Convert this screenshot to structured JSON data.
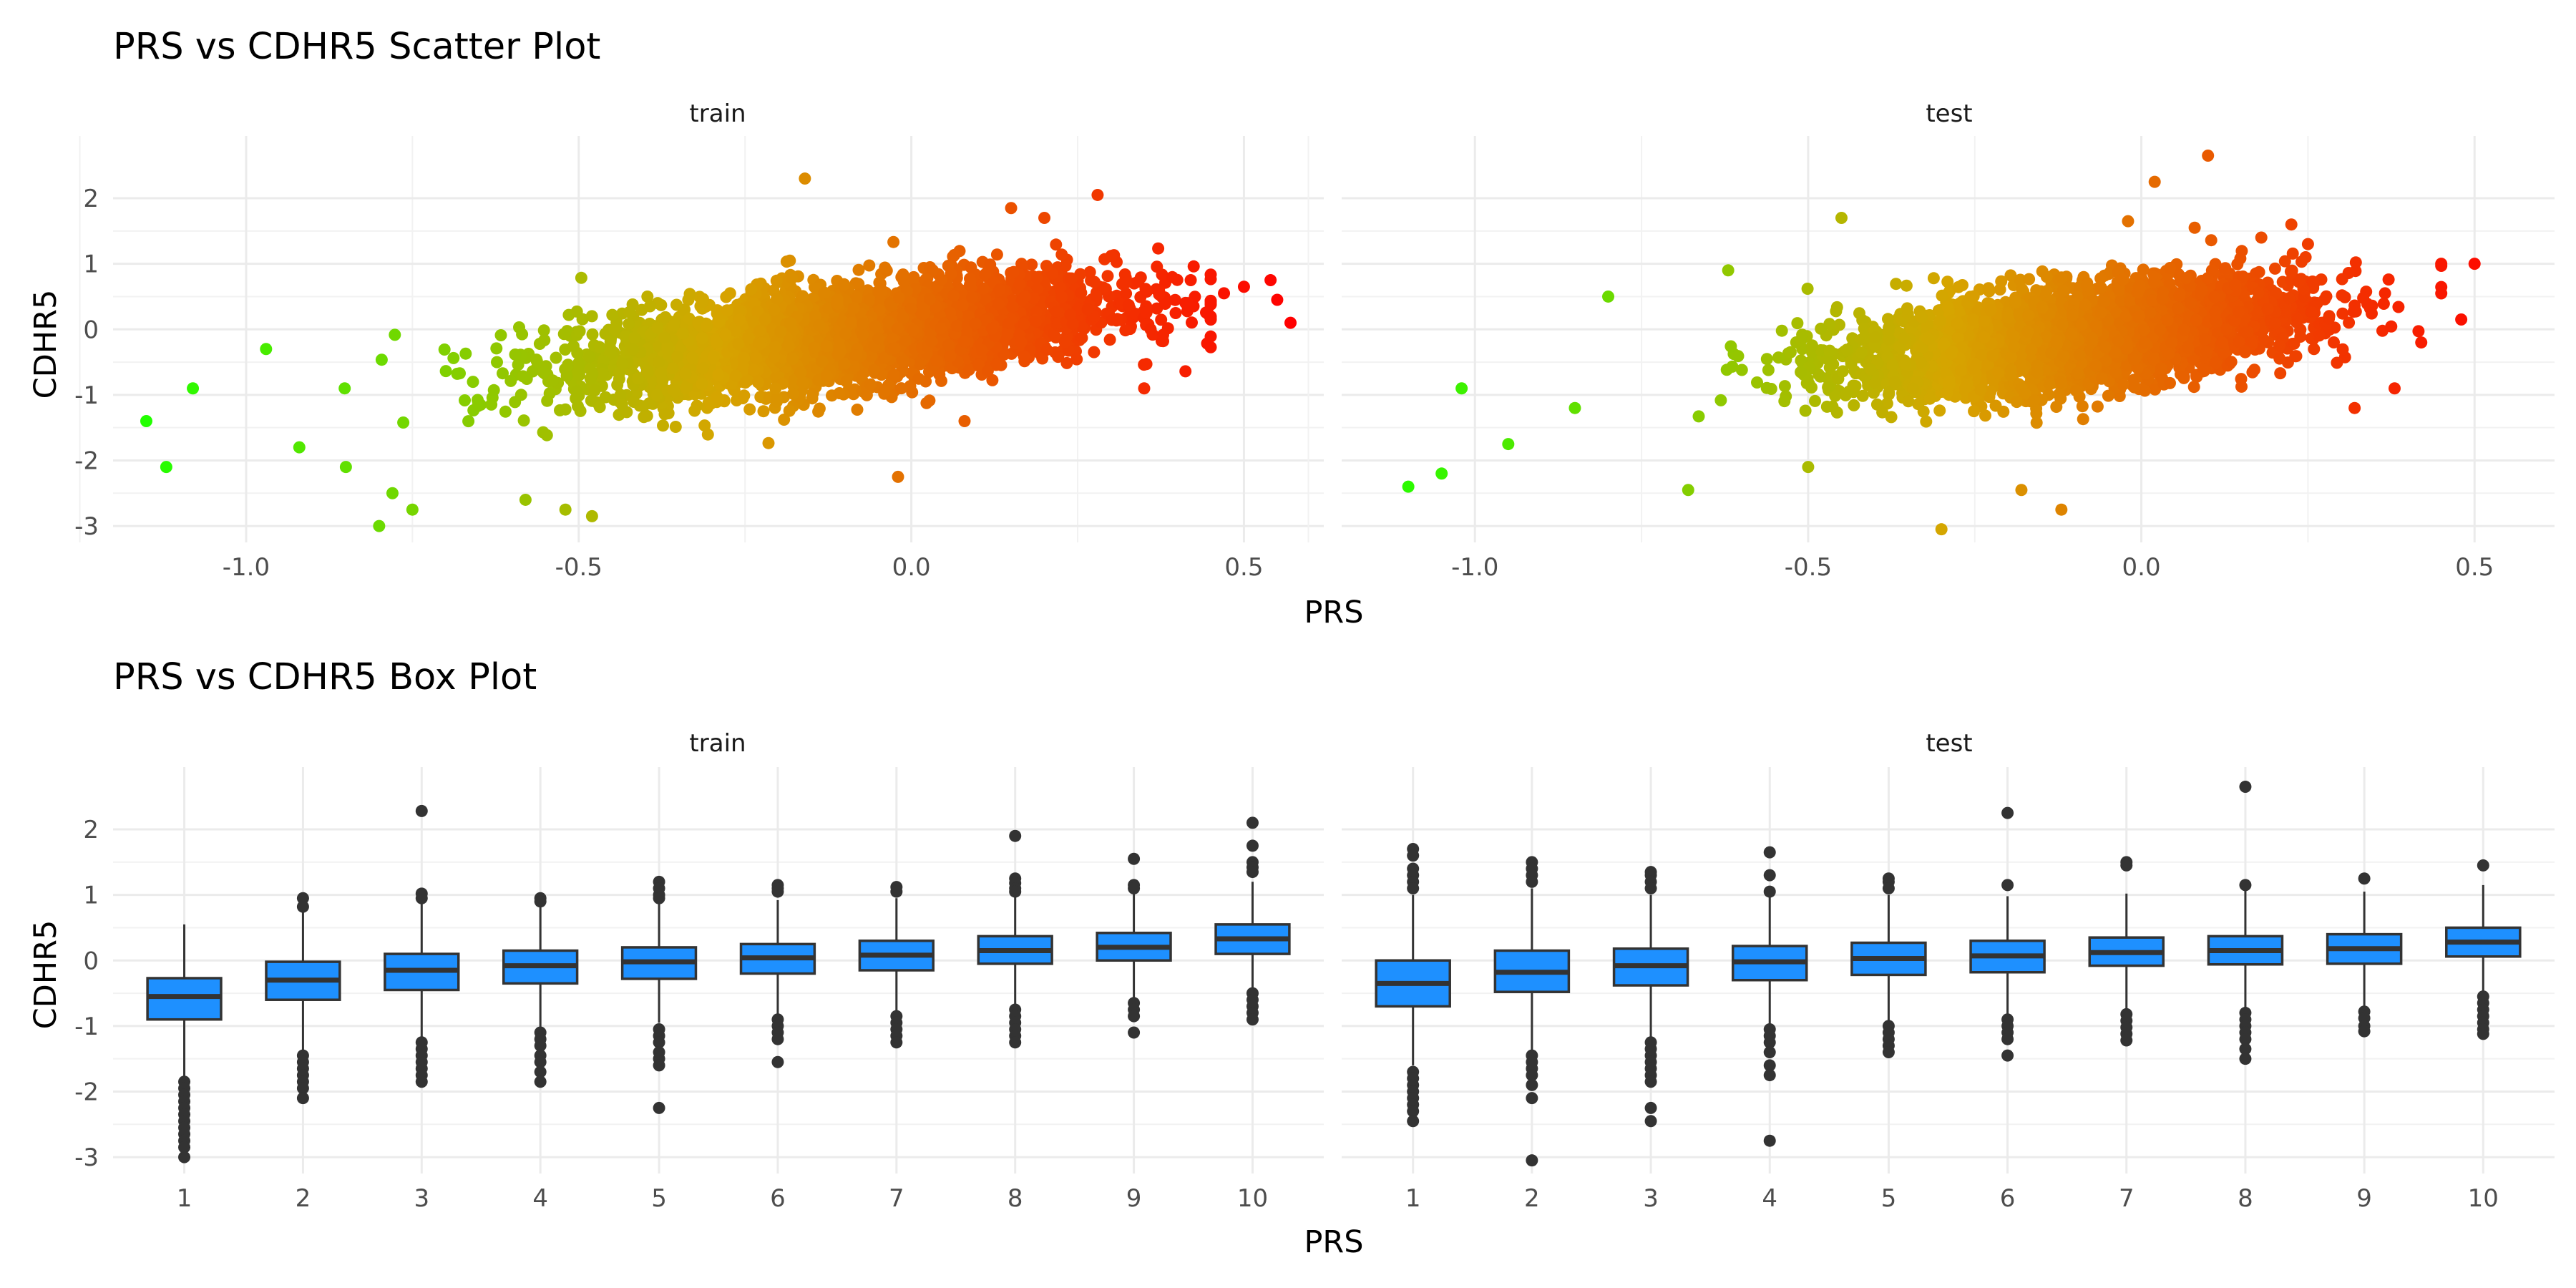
{
  "chart_data": [
    {
      "type": "scatter",
      "title": "PRS vs CDHR5 Scatter Plot",
      "xlabel": "PRS",
      "ylabel": "CDHR5",
      "facets": [
        "train",
        "test"
      ],
      "xlim": [
        -1.2,
        0.62
      ],
      "ylim": [
        -3.25,
        2.95
      ],
      "x_ticks": [
        -1.0,
        -0.5,
        0.0,
        0.5
      ],
      "x_tick_labels": [
        "-1.0",
        "-0.5",
        "0.0",
        "0.5"
      ],
      "y_ticks": [
        2,
        1,
        0,
        -1,
        -2,
        -3
      ],
      "y_tick_labels": [
        "2",
        "1",
        "0",
        "-1",
        "-2",
        "-3"
      ],
      "grid": true,
      "color_scale": {
        "low": "#22ff00",
        "mid": "#d6a500",
        "high": "#ff0000",
        "mapped_to": "PRS"
      },
      "trend": {
        "train": {
          "slope": 1.15,
          "intercept": 0.02,
          "sd": 0.5
        },
        "test": {
          "slope": 1.15,
          "intercept": 0.0,
          "sd": 0.5
        }
      },
      "panels": {
        "train": {
          "points": [
            [
              -1.15,
              -1.4
            ],
            [
              -1.12,
              -2.1
            ],
            [
              -1.08,
              -0.9
            ],
            [
              -0.97,
              -0.3
            ],
            [
              -0.92,
              -1.8
            ],
            [
              -0.85,
              -2.1
            ],
            [
              -0.8,
              -3.0
            ],
            [
              -0.78,
              -2.5
            ],
            [
              -0.75,
              -2.75
            ],
            [
              -0.58,
              -2.6
            ],
            [
              -0.52,
              -2.75
            ],
            [
              -0.48,
              -2.85
            ],
            [
              -0.16,
              2.3
            ],
            [
              -0.02,
              -2.25
            ],
            [
              0.08,
              -1.4
            ],
            [
              0.15,
              1.85
            ],
            [
              0.2,
              1.7
            ],
            [
              0.28,
              2.05
            ],
            [
              0.35,
              -0.9
            ],
            [
              0.42,
              0.75
            ],
            [
              0.47,
              0.55
            ],
            [
              0.5,
              0.65
            ],
            [
              0.54,
              0.75
            ],
            [
              0.55,
              0.45
            ],
            [
              0.57,
              0.1
            ]
          ]
        },
        "test": {
          "points": [
            [
              -1.1,
              -2.4
            ],
            [
              -1.05,
              -2.2
            ],
            [
              -1.02,
              -0.9
            ],
            [
              -0.95,
              -1.75
            ],
            [
              -0.85,
              -1.2
            ],
            [
              -0.8,
              0.5
            ],
            [
              -0.68,
              -2.45
            ],
            [
              -0.62,
              0.9
            ],
            [
              -0.5,
              -2.1
            ],
            [
              -0.45,
              1.7
            ],
            [
              -0.3,
              -3.05
            ],
            [
              -0.18,
              -2.45
            ],
            [
              -0.12,
              -2.75
            ],
            [
              -0.02,
              1.65
            ],
            [
              0.02,
              2.25
            ],
            [
              0.08,
              1.55
            ],
            [
              0.1,
              2.65
            ],
            [
              0.18,
              1.4
            ],
            [
              0.25,
              1.3
            ],
            [
              0.32,
              -1.2
            ],
            [
              0.38,
              -0.9
            ],
            [
              0.42,
              -0.2
            ],
            [
              0.45,
              1.0
            ],
            [
              0.48,
              0.15
            ],
            [
              0.5,
              1.0
            ]
          ]
        }
      }
    },
    {
      "type": "box",
      "title": "PRS vs CDHR5 Box Plot",
      "xlabel": "PRS",
      "ylabel": "CDHR5",
      "facets": [
        "train",
        "test"
      ],
      "categories": [
        "1",
        "2",
        "3",
        "4",
        "5",
        "6",
        "7",
        "8",
        "9",
        "10"
      ],
      "ylim": [
        -3.25,
        2.95
      ],
      "y_ticks": [
        2,
        1,
        0,
        -1,
        -2,
        -3
      ],
      "y_tick_labels": [
        "2",
        "1",
        "0",
        "-1",
        "-2",
        "-3"
      ],
      "grid": true,
      "box_fill": "#1e90ff",
      "panels": {
        "train": {
          "boxes": [
            {
              "lower": -1.82,
              "q1": -0.9,
              "median": -0.55,
              "q3": -0.27,
              "upper": 0.55,
              "outliers": [
                -1.85,
                -1.95,
                -2.05,
                -2.15,
                -2.25,
                -2.35,
                -2.45,
                -2.55,
                -2.65,
                -2.75,
                -2.85,
                -3.0
              ]
            },
            {
              "lower": -1.4,
              "q1": -0.6,
              "median": -0.3,
              "q3": -0.02,
              "upper": 0.78,
              "outliers": [
                0.82,
                0.95,
                -1.45,
                -1.55,
                -1.65,
                -1.75,
                -1.85,
                -1.95,
                -2.1
              ]
            },
            {
              "lower": -1.2,
              "q1": -0.45,
              "median": -0.15,
              "q3": 0.1,
              "upper": 0.9,
              "outliers": [
                2.28,
                1.02,
                0.95,
                -1.25,
                -1.35,
                -1.45,
                -1.55,
                -1.65,
                -1.75,
                -1.85
              ]
            },
            {
              "lower": -1.05,
              "q1": -0.35,
              "median": -0.08,
              "q3": 0.15,
              "upper": 0.85,
              "outliers": [
                0.95,
                0.9,
                -1.1,
                -1.2,
                -1.3,
                -1.45,
                -1.55,
                -1.7,
                -1.85
              ]
            },
            {
              "lower": -0.95,
              "q1": -0.28,
              "median": -0.02,
              "q3": 0.2,
              "upper": 0.88,
              "outliers": [
                1.2,
                1.1,
                1.0,
                0.95,
                -1.05,
                -1.15,
                -1.25,
                -1.4,
                -1.5,
                -1.6,
                -2.25
              ]
            },
            {
              "lower": -0.85,
              "q1": -0.2,
              "median": 0.04,
              "q3": 0.25,
              "upper": 0.92,
              "outliers": [
                1.15,
                1.1,
                1.05,
                -0.9,
                -1.0,
                -1.1,
                -1.2,
                -1.55
              ]
            },
            {
              "lower": -0.8,
              "q1": -0.15,
              "median": 0.08,
              "q3": 0.3,
              "upper": 0.95,
              "outliers": [
                1.12,
                1.05,
                -0.85,
                -0.95,
                -1.05,
                -1.15,
                -1.25
              ]
            },
            {
              "lower": -0.7,
              "q1": -0.05,
              "median": 0.15,
              "q3": 0.37,
              "upper": 1.0,
              "outliers": [
                1.9,
                1.25,
                1.18,
                1.1,
                1.05,
                -0.75,
                -0.85,
                -0.95,
                -1.05,
                -1.15,
                -1.25
              ]
            },
            {
              "lower": -0.62,
              "q1": 0.0,
              "median": 0.2,
              "q3": 0.42,
              "upper": 1.05,
              "outliers": [
                1.55,
                1.15,
                1.1,
                -0.65,
                -0.75,
                -0.85,
                -1.1
              ]
            },
            {
              "lower": -0.45,
              "q1": 0.1,
              "median": 0.33,
              "q3": 0.55,
              "upper": 1.2,
              "outliers": [
                2.1,
                1.75,
                1.5,
                1.42,
                1.35,
                -0.5,
                -0.6,
                -0.7,
                -0.8,
                -0.9
              ]
            }
          ]
        },
        "test": {
          "boxes": [
            {
              "lower": -1.6,
              "q1": -0.7,
              "median": -0.35,
              "q3": 0.0,
              "upper": 1.0,
              "outliers": [
                1.7,
                1.6,
                1.4,
                1.3,
                1.2,
                1.1,
                -1.7,
                -1.8,
                -1.9,
                -2.0,
                -2.1,
                -2.2,
                -2.3,
                -2.45
              ]
            },
            {
              "lower": -1.4,
              "q1": -0.48,
              "median": -0.18,
              "q3": 0.15,
              "upper": 1.1,
              "outliers": [
                1.5,
                1.4,
                1.3,
                1.2,
                -1.45,
                -1.55,
                -1.65,
                -1.75,
                -1.9,
                -2.1,
                -3.05
              ]
            },
            {
              "lower": -1.2,
              "q1": -0.38,
              "median": -0.08,
              "q3": 0.18,
              "upper": 1.0,
              "outliers": [
                1.35,
                1.3,
                1.2,
                1.1,
                -1.25,
                -1.35,
                -1.45,
                -1.55,
                -1.65,
                -1.75,
                -1.85,
                -2.25,
                -2.45
              ]
            },
            {
              "lower": -1.0,
              "q1": -0.3,
              "median": -0.02,
              "q3": 0.22,
              "upper": 0.98,
              "outliers": [
                1.65,
                1.3,
                1.05,
                -1.05,
                -1.15,
                -1.25,
                -1.4,
                -1.6,
                -1.75,
                -2.75
              ]
            },
            {
              "lower": -0.95,
              "q1": -0.22,
              "median": 0.03,
              "q3": 0.27,
              "upper": 1.0,
              "outliers": [
                1.25,
                1.2,
                1.1,
                -1.0,
                -1.1,
                -1.2,
                -1.3,
                -1.4
              ]
            },
            {
              "lower": -0.85,
              "q1": -0.18,
              "median": 0.07,
              "q3": 0.3,
              "upper": 0.98,
              "outliers": [
                2.25,
                1.15,
                -0.9,
                -1.0,
                -1.1,
                -1.2,
                -1.45
              ]
            },
            {
              "lower": -0.78,
              "q1": -0.08,
              "median": 0.12,
              "q3": 0.35,
              "upper": 1.02,
              "outliers": [
                1.5,
                1.45,
                -0.82,
                -0.92,
                -1.02,
                -1.12,
                -1.22
              ]
            },
            {
              "lower": -0.72,
              "q1": -0.06,
              "median": 0.15,
              "q3": 0.37,
              "upper": 1.1,
              "outliers": [
                2.65,
                1.15,
                -0.8,
                -0.9,
                -1.0,
                -1.1,
                -1.2,
                -1.35,
                -1.5
              ]
            },
            {
              "lower": -0.7,
              "q1": -0.05,
              "median": 0.18,
              "q3": 0.4,
              "upper": 1.05,
              "outliers": [
                1.25,
                -0.78,
                -0.88,
                -1.0,
                -1.08
              ]
            },
            {
              "lower": -0.5,
              "q1": 0.06,
              "median": 0.28,
              "q3": 0.5,
              "upper": 1.15,
              "outliers": [
                1.45,
                -0.55,
                -0.65,
                -0.75,
                -0.85,
                -0.95,
                -1.05,
                -1.12
              ]
            }
          ]
        }
      }
    }
  ]
}
